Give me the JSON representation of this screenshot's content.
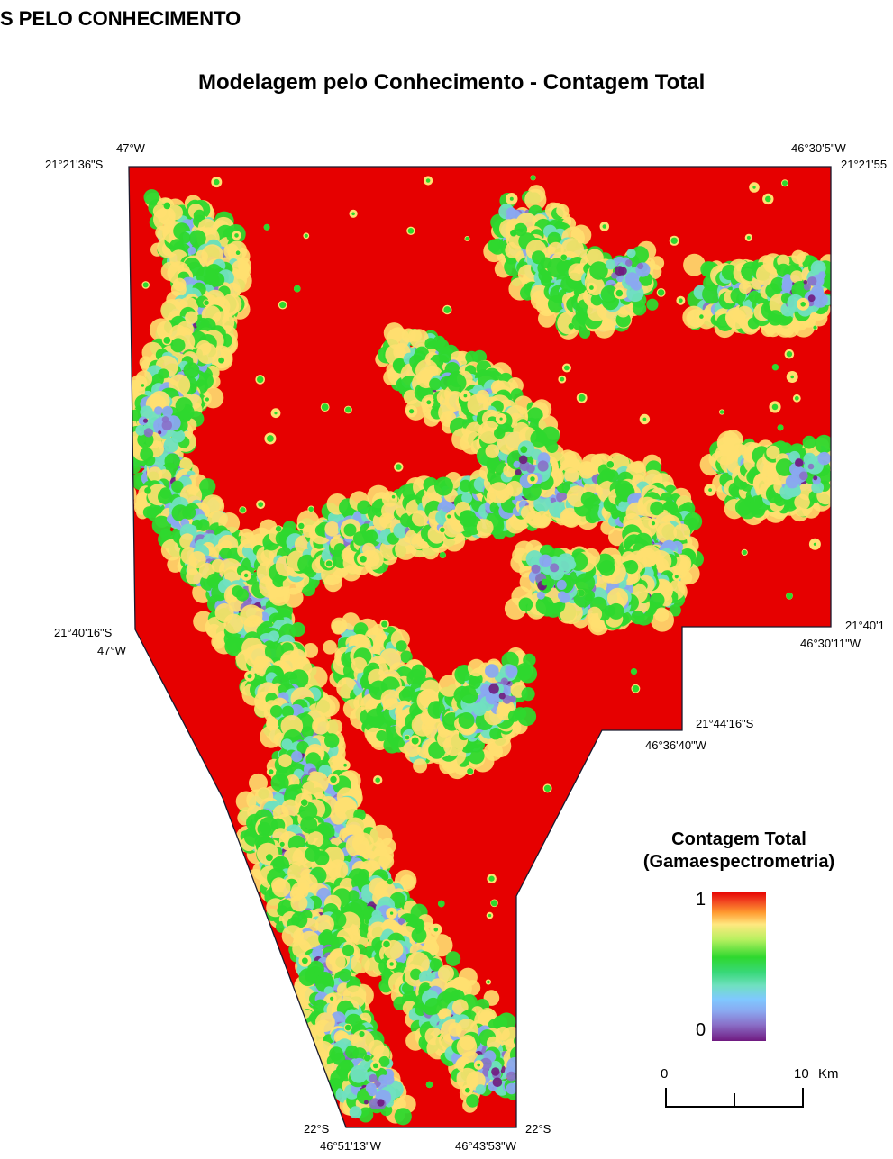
{
  "header": {
    "cut_title": "S PELO CONHECIMENTO"
  },
  "map": {
    "title": "Modelagem pelo Conhecimento - Contagem Total",
    "coords": {
      "top_left_lon": "47°W",
      "top_left_lat": "21°21'36\"S",
      "top_right_lon": "46°30'5\"W",
      "top_right_lat": "21°21'55",
      "mid_left_lat": "21°40'16\"S",
      "mid_left_lon": "47°W",
      "mid_right_lat": "21°40'1",
      "mid_right_lon": "46°30'11\"W",
      "notch_lat": "21°44'16\"S",
      "notch_lon": "46°36'40\"W",
      "bottom_left_lat": "22°S",
      "bottom_left_lon": "46°51'13\"W",
      "bottom_right_lat": "22°S",
      "bottom_right_lon": "46°43'53\"W"
    },
    "colors": {
      "high": "#e60000",
      "mid": "#2ed82e",
      "low": "#701a80",
      "background_dominant": "#e60000"
    }
  },
  "legend": {
    "title_line1": "Contagem Total",
    "title_line2": "(Gamaespectrometria)",
    "max_label": "1",
    "min_label": "0"
  },
  "scalebar": {
    "start_label": "0",
    "end_label": "10",
    "unit": "Km"
  }
}
